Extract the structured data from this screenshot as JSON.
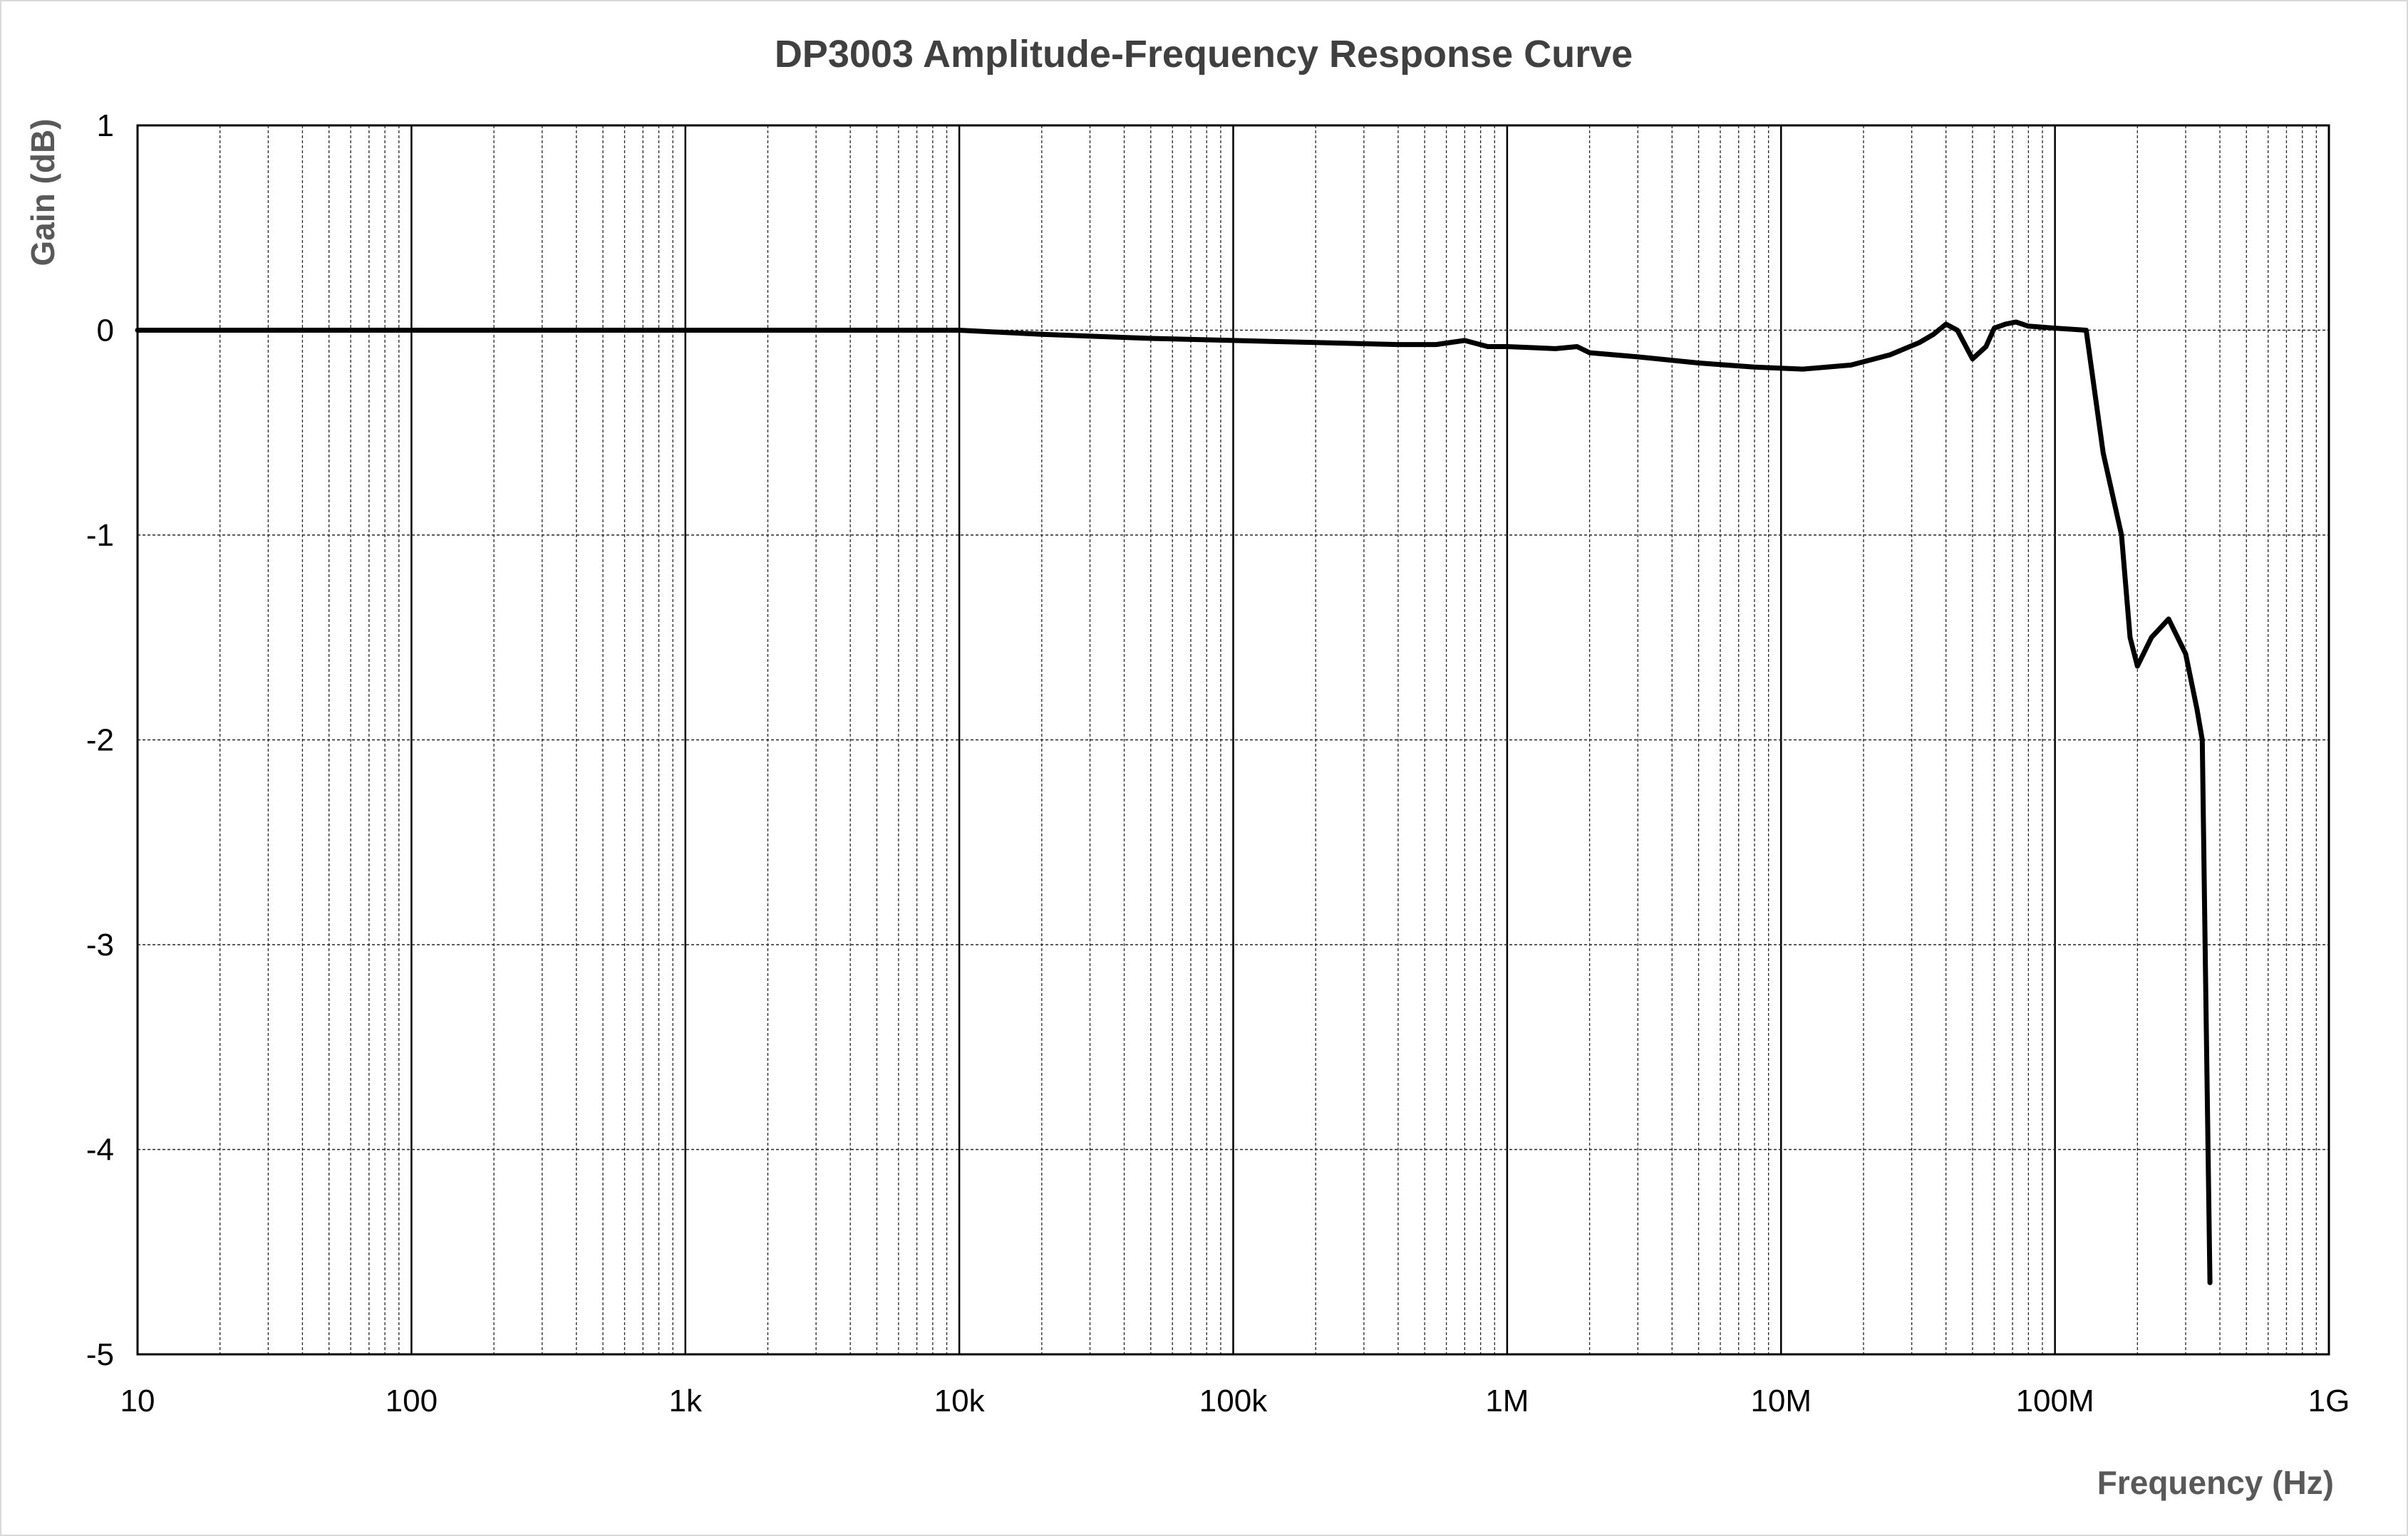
{
  "chart_data": {
    "type": "line",
    "title": "DP3003 Amplitude-Frequency Response Curve",
    "xlabel": "Frequency (Hz)",
    "ylabel": "Gain (dB)",
    "xscale": "log",
    "xlim": [
      10,
      1000000000
    ],
    "ylim": [
      -5,
      1
    ],
    "x_tick_labels": [
      "10",
      "100",
      "1k",
      "10k",
      "100k",
      "1M",
      "10M",
      "100M",
      "1G"
    ],
    "y_tick_labels": [
      "1",
      "0",
      "-1",
      "-2",
      "-3",
      "-4",
      "-5"
    ],
    "grid": true,
    "line_color": "#000000",
    "series": [
      {
        "name": "",
        "points": [
          [
            10,
            0.0
          ],
          [
            100,
            0.0
          ],
          [
            1000,
            0.0
          ],
          [
            5000,
            0.0
          ],
          [
            10000,
            0.0
          ],
          [
            20000,
            -0.02
          ],
          [
            50000,
            -0.04
          ],
          [
            100000,
            -0.05
          ],
          [
            200000,
            -0.06
          ],
          [
            400000,
            -0.07
          ],
          [
            550000,
            -0.07
          ],
          [
            700000,
            -0.05
          ],
          [
            850000,
            -0.08
          ],
          [
            1000000,
            -0.08
          ],
          [
            1500000,
            -0.09
          ],
          [
            1800000,
            -0.08
          ],
          [
            2000000,
            -0.11
          ],
          [
            3000000,
            -0.13
          ],
          [
            5000000,
            -0.16
          ],
          [
            8000000,
            -0.18
          ],
          [
            12000000,
            -0.19
          ],
          [
            18000000,
            -0.17
          ],
          [
            25000000,
            -0.12
          ],
          [
            32000000,
            -0.06
          ],
          [
            36000000,
            -0.02
          ],
          [
            40000000,
            0.03
          ],
          [
            44000000,
            0.0
          ],
          [
            50000000,
            -0.14
          ],
          [
            56000000,
            -0.08
          ],
          [
            60000000,
            0.01
          ],
          [
            66000000,
            0.03
          ],
          [
            72000000,
            0.04
          ],
          [
            80000000,
            0.02
          ],
          [
            100000000,
            0.01
          ],
          [
            130000000,
            0.0
          ],
          [
            150000000,
            -0.6
          ],
          [
            175000000,
            -1.0
          ],
          [
            188000000,
            -1.5
          ],
          [
            200000000,
            -1.64
          ],
          [
            225000000,
            -1.5
          ],
          [
            260000000,
            -1.41
          ],
          [
            300000000,
            -1.58
          ],
          [
            330000000,
            -1.85
          ],
          [
            345000000,
            -2.0
          ],
          [
            355000000,
            -3.2
          ],
          [
            368000000,
            -4.65
          ]
        ]
      }
    ]
  }
}
